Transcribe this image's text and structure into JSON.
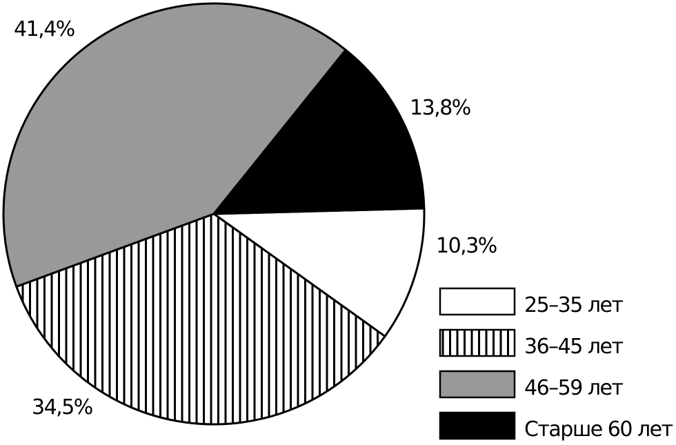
{
  "chart_data": {
    "type": "pie",
    "title": "",
    "slices": [
      {
        "label": "25–35 лет",
        "value": 10.3,
        "value_label": "10,3%",
        "fill": "#ffffff",
        "pattern": "none"
      },
      {
        "label": "36–45 лет",
        "value": 34.5,
        "value_label": "34,5%",
        "fill": "#ffffff",
        "pattern": "vertical-stripes"
      },
      {
        "label": "46–59 лет",
        "value": 41.4,
        "value_label": "41,4%",
        "fill": "#999999",
        "pattern": "none"
      },
      {
        "label": "Старше 60 лет",
        "value": 13.8,
        "value_label": "13,8%",
        "fill": "#000000",
        "pattern": "none"
      }
    ],
    "legend_placement": "bottom-right",
    "outline_color": "#000000"
  }
}
